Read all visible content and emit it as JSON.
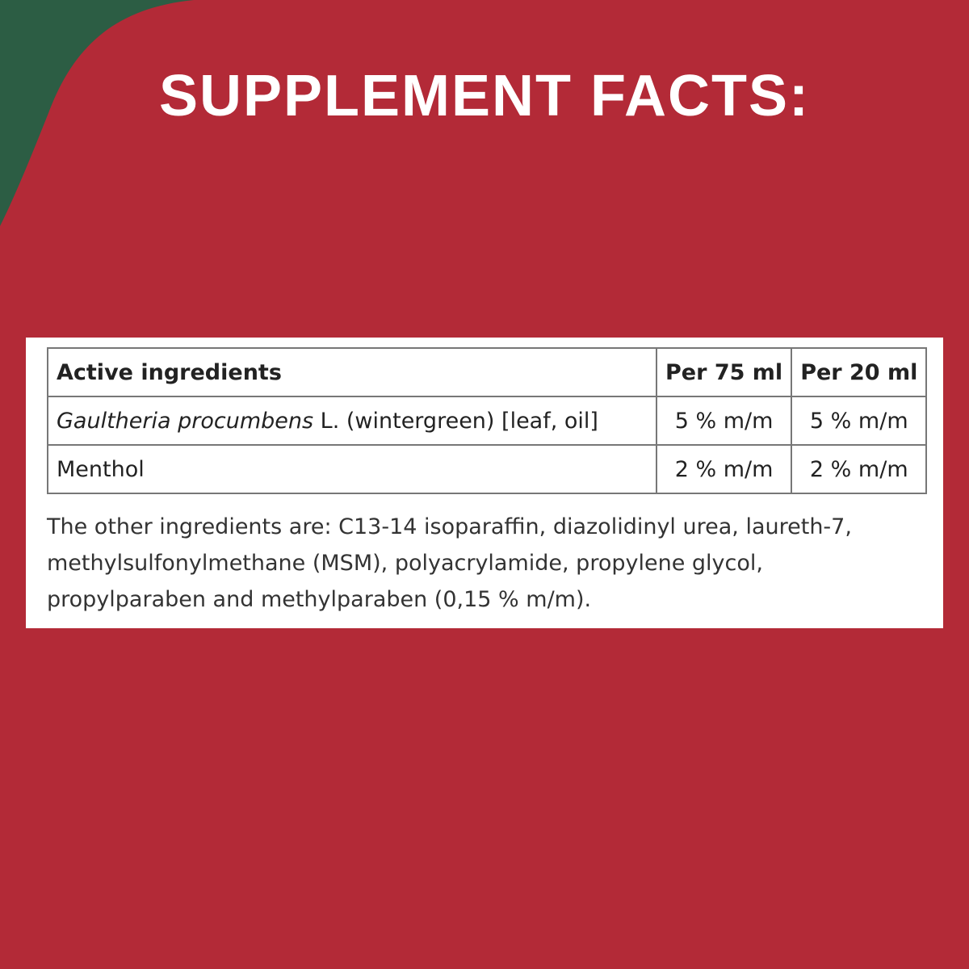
{
  "header": {
    "title": "SUPPLEMENT FACTS:"
  },
  "table": {
    "columns": [
      "Active ingredients",
      "Per 75 ml",
      "Per 20 ml"
    ],
    "rows": [
      [
        [
          "Gaultheria procumbens",
          "L. (wintergreen) [leaf, oil]"
        ],
        "5 % m/m",
        "5 % m/m"
      ],
      [
        "Menthol",
        "2 % m/m",
        "2 % m/m"
      ]
    ]
  },
  "note": {
    "lines": [
      "The other ingredients are: C13-14 isoparaffin, diazolidinyl urea, laureth-7,",
      "methylsulfonylmethane (MSM), polyacrylamide, propylene glycol,",
      "propylparaben and methylparaben (0,15 % m/m)."
    ]
  }
}
